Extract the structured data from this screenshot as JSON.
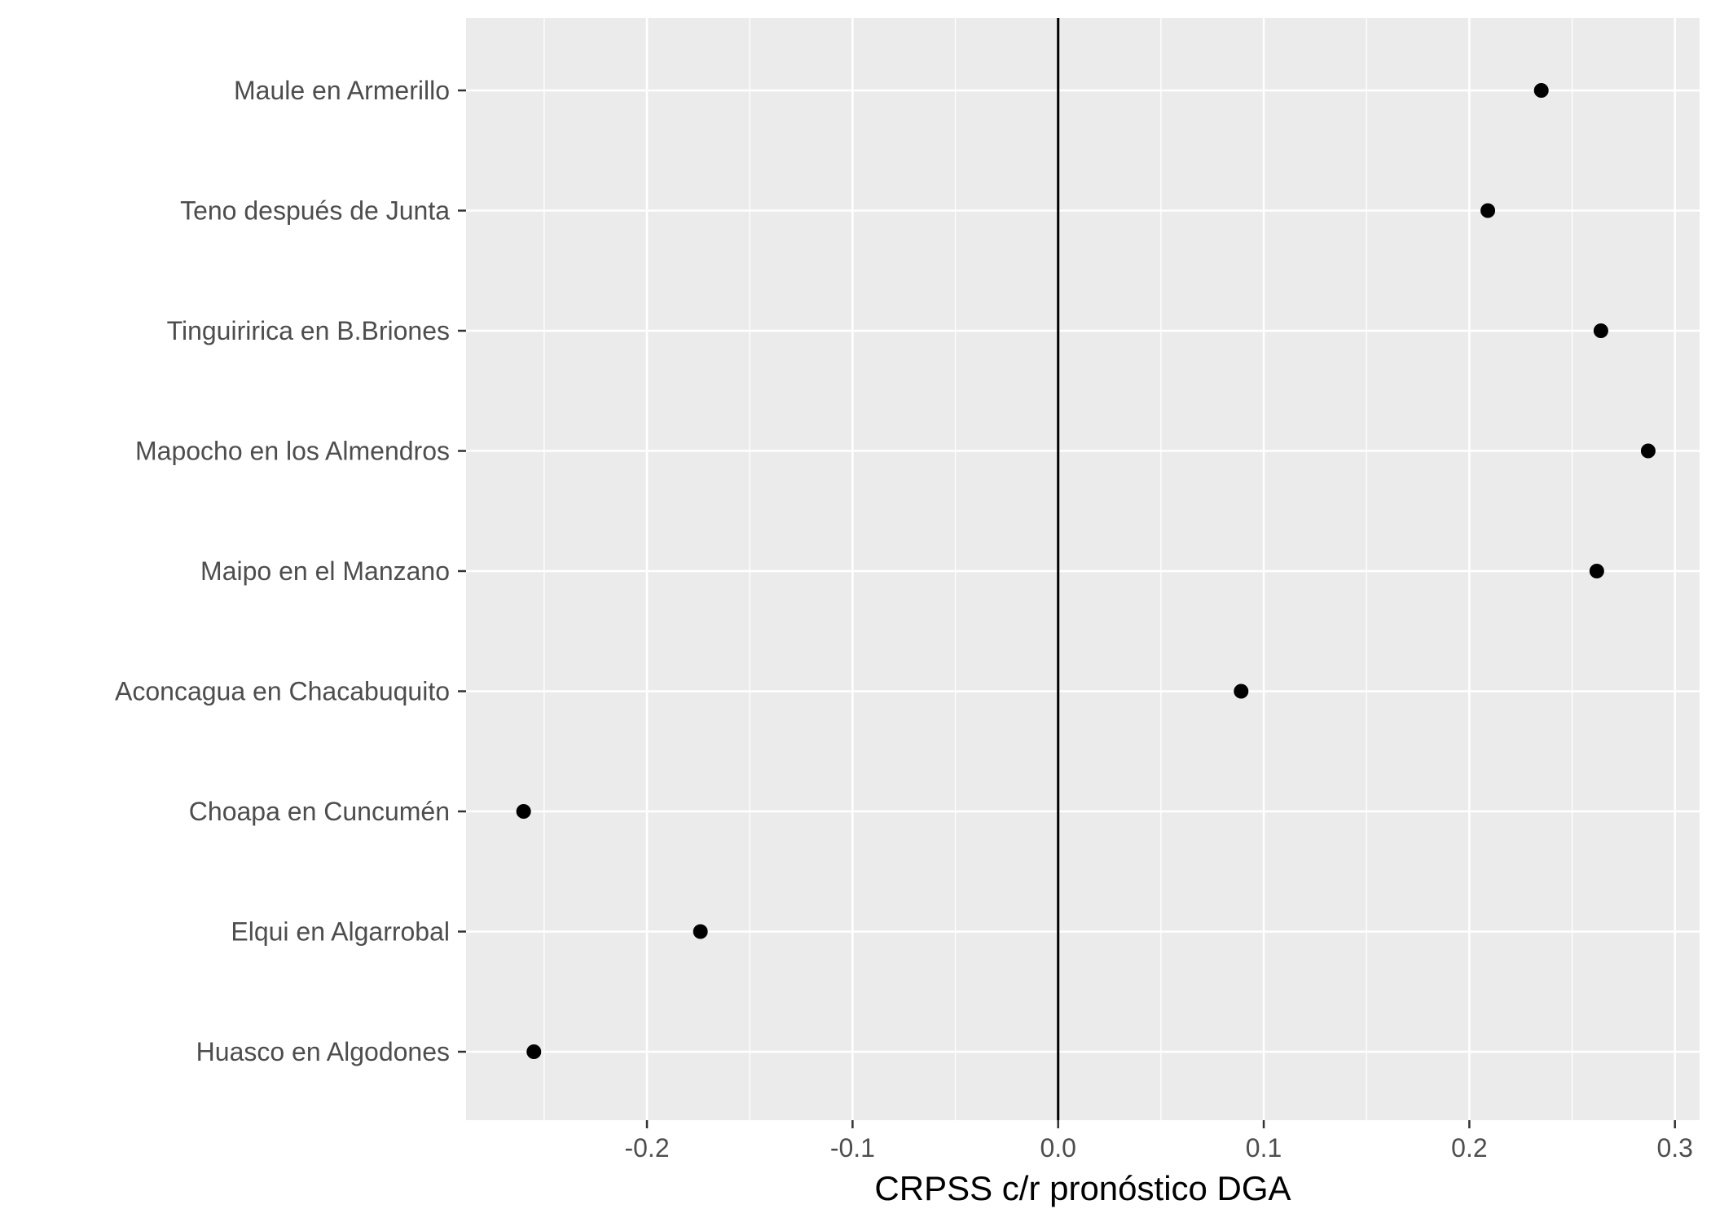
{
  "chart_data": {
    "type": "scatter",
    "title": "",
    "xlabel": "CRPSS c/r pronóstico DGA",
    "ylabel": "",
    "xlim": [
      -0.288,
      0.312
    ],
    "x_ticks": [
      -0.2,
      -0.1,
      0.0,
      0.1,
      0.2,
      0.3
    ],
    "x_tick_labels": [
      "-0.2",
      "-0.1",
      "0.0",
      "0.1",
      "0.2",
      "0.3"
    ],
    "reference_line_x": 0.0,
    "grid": true,
    "legend": "none",
    "categories": [
      "Maule en Armerillo",
      "Teno después de Junta",
      "Tinguiririca en B.Briones",
      "Mapocho en los Almendros",
      "Maipo en el Manzano",
      "Aconcagua en Chacabuquito",
      "Choapa en Cuncumén",
      "Elqui en Algarrobal",
      "Huasco en Algodones"
    ],
    "values": [
      0.235,
      0.209,
      0.264,
      0.287,
      0.262,
      0.089,
      -0.26,
      -0.174,
      -0.255
    ]
  },
  "colors": {
    "panel_background": "#ebebeb",
    "grid_major": "#ffffff",
    "point": "#000000",
    "reference_line": "#000000",
    "tick_label": "#4d4d4d",
    "axis_title": "#000000",
    "tick_mark": "#333333"
  }
}
